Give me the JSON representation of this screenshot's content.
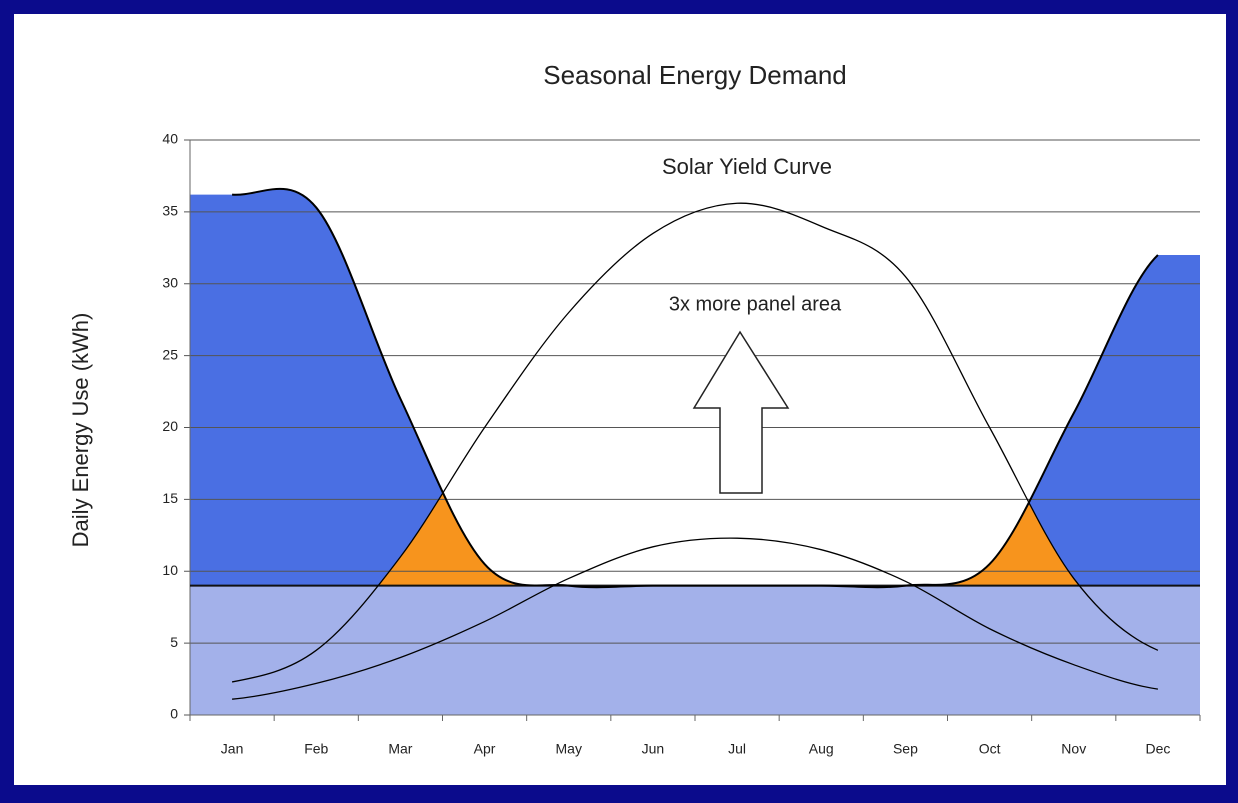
{
  "chart_data": {
    "type": "area",
    "title": "Seasonal Energy Demand",
    "y_label": "Daily Energy Use (kWh)",
    "annotations": [
      "Solar Yield Curve",
      "3x more panel area"
    ],
    "categories": [
      "Jan",
      "Feb",
      "Mar",
      "Apr",
      "May",
      "Jun",
      "Jul",
      "Aug",
      "Sep",
      "Oct",
      "Nov",
      "Dec"
    ],
    "base_load": 9,
    "base_color": "#a3b1ea",
    "surplus_color": "#f7941d",
    "series": [
      {
        "color": "#000000",
        "fill": "#4a6fe3",
        "values": [
          36.2,
          35.3,
          22,
          10.5,
          9,
          9,
          9,
          9,
          9,
          10.5,
          21,
          32
        ]
      },
      {
        "color": "#000000",
        "values": [
          2.3,
          4.5,
          11,
          20,
          28,
          33.5,
          35.6,
          34,
          30.5,
          20,
          9.5,
          4.5
        ]
      },
      {
        "color": "#000000",
        "values": [
          1.1,
          2.2,
          4,
          6.5,
          9.5,
          11.7,
          12.3,
          11.5,
          9.3,
          6,
          3.5,
          1.8
        ]
      }
    ],
    "ylim": [
      0,
      40
    ],
    "yticks": [
      0,
      5,
      10,
      15,
      20,
      25,
      30,
      35,
      40
    ],
    "grid": true
  }
}
